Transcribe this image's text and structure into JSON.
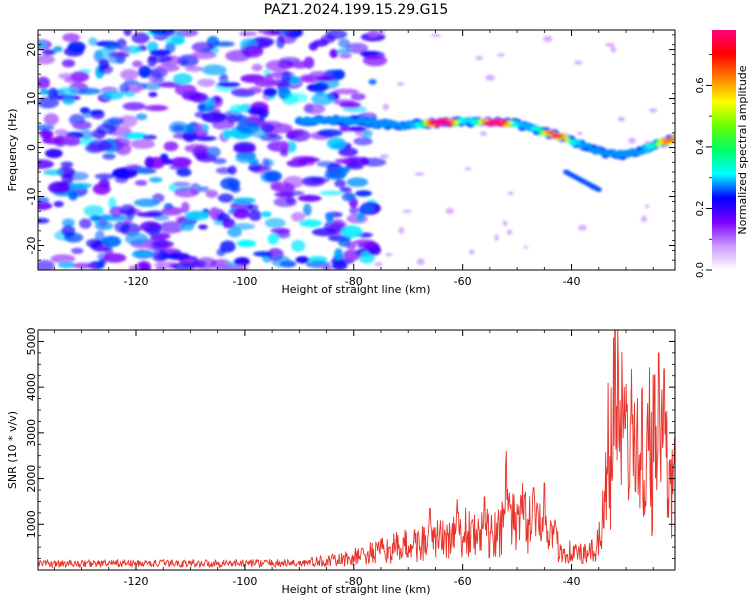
{
  "title": "PAZ1.2024.199.15.29.G15",
  "chart_data": [
    {
      "type": "heatmap",
      "xlabel": "Height of straight line (km)",
      "ylabel": "Frequency (Hz)",
      "xlim": [
        -138,
        -21
      ],
      "ylim": [
        -25,
        24
      ],
      "xticks": [
        -120,
        -100,
        -80,
        -60,
        -40
      ],
      "yticks": [
        -20,
        -10,
        0,
        10,
        20
      ],
      "colorbar": {
        "label": "Normalized spectral amplitude",
        "range": [
          0,
          0.78
        ],
        "ticks": [
          "0.0",
          "0.2",
          "0.4",
          "0.6"
        ],
        "colors": [
          "#ffffff",
          "#cc99ff",
          "#7a00ff",
          "#0000ff",
          "#00ffff",
          "#00ff66",
          "#66ff00",
          "#ffff00",
          "#ff7f00",
          "#ff0000",
          "#ff0080"
        ]
      },
      "ridge": {
        "description": "dominant frequency track",
        "points": [
          [
            -90,
            5.5
          ],
          [
            -80,
            5.5
          ],
          [
            -72,
            4.5
          ],
          [
            -65,
            5.0
          ],
          [
            -60,
            5.3
          ],
          [
            -55,
            5.2
          ],
          [
            -50,
            4.8
          ],
          [
            -46,
            3.5
          ],
          [
            -42,
            2.2
          ],
          [
            -38,
            0.5
          ],
          [
            -34,
            -1.0
          ],
          [
            -30,
            -1.5
          ],
          [
            -27,
            -0.5
          ],
          [
            -24,
            1.0
          ],
          [
            -21,
            1.8
          ]
        ],
        "peak_amplitude": [
          [
            -64,
            0.78
          ],
          [
            -54,
            0.72
          ],
          [
            -43,
            0.55
          ],
          [
            -22,
            0.5
          ]
        ]
      },
      "noise_region": {
        "x_from": -138,
        "x_to": -80,
        "amplitude": 0.25
      }
    },
    {
      "type": "line",
      "xlabel": "Height of straight line (km)",
      "ylabel": "SNR (10 * v/v)",
      "xlim": [
        -138,
        -21
      ],
      "ylim": [
        0,
        5250
      ],
      "xticks": [
        -120,
        -100,
        -80,
        -60,
        -40
      ],
      "yticks": [
        1000,
        2000,
        3000,
        4000,
        5000
      ],
      "color": "#e8332a",
      "envelope": [
        [
          -138,
          120
        ],
        [
          -90,
          140
        ],
        [
          -82,
          250
        ],
        [
          -75,
          450
        ],
        [
          -70,
          600
        ],
        [
          -65,
          700
        ],
        [
          -60,
          900
        ],
        [
          -57,
          800
        ],
        [
          -53,
          1000
        ],
        [
          -50,
          1200
        ],
        [
          -48,
          1300
        ],
        [
          -46,
          1200
        ],
        [
          -44,
          900
        ],
        [
          -42,
          500
        ],
        [
          -37,
          350
        ],
        [
          -35,
          600
        ],
        [
          -34,
          1800
        ],
        [
          -33,
          3000
        ],
        [
          -32,
          3800
        ],
        [
          -30,
          3000
        ],
        [
          -28,
          2500
        ],
        [
          -26,
          2900
        ],
        [
          -24,
          2900
        ],
        [
          -22,
          2300
        ],
        [
          -21,
          2400
        ]
      ],
      "peaks": [
        [
          -66,
          1350
        ],
        [
          -61,
          1550
        ],
        [
          -56,
          1600
        ],
        [
          -52,
          2600
        ],
        [
          -49,
          1900
        ],
        [
          -47,
          1800
        ],
        [
          -45,
          1900
        ],
        [
          -32,
          5250
        ],
        [
          -29,
          4400
        ],
        [
          -26,
          3650
        ],
        [
          -24,
          4750
        ],
        [
          -23,
          4400
        ],
        [
          -21,
          2900
        ]
      ]
    }
  ]
}
